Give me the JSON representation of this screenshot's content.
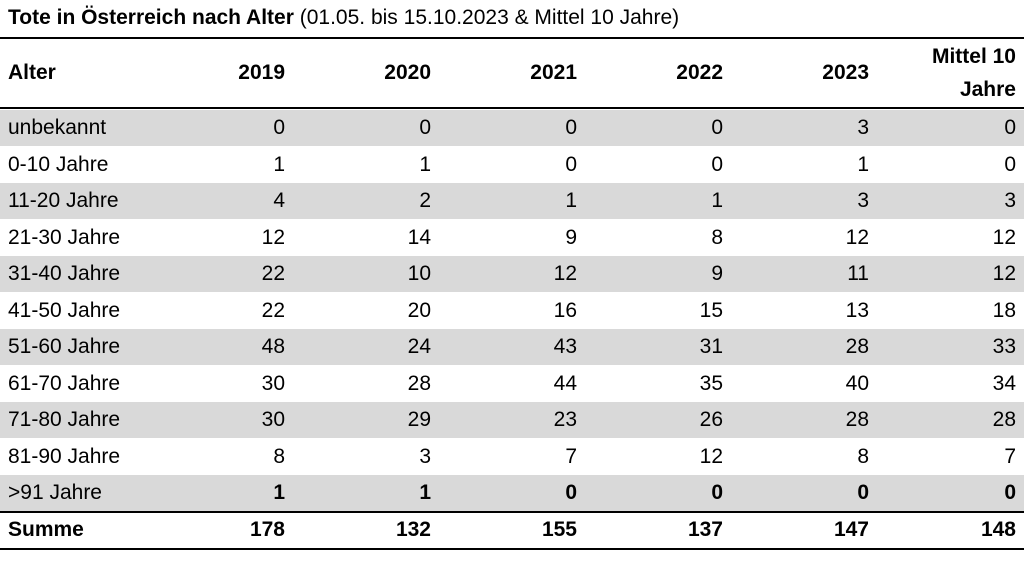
{
  "title": {
    "bold": "Tote in Österreich nach Alter",
    "normal": "(01.05. bis 15.10.2023 & Mittel 10 Jahre)"
  },
  "table": {
    "header": [
      "Alter",
      "2019",
      "2020",
      "2021",
      "2022",
      "2023",
      "Mittel 10 Jahre"
    ],
    "rows": [
      [
        "unbekannt",
        0,
        0,
        0,
        0,
        3,
        0
      ],
      [
        "0-10 Jahre",
        1,
        1,
        0,
        0,
        1,
        0
      ],
      [
        "11-20 Jahre",
        4,
        2,
        1,
        1,
        3,
        3
      ],
      [
        "21-30 Jahre",
        12,
        14,
        9,
        8,
        12,
        12
      ],
      [
        "31-40 Jahre",
        22,
        10,
        12,
        9,
        11,
        12
      ],
      [
        "41-50 Jahre",
        22,
        20,
        16,
        15,
        13,
        18
      ],
      [
        "51-60 Jahre",
        48,
        24,
        43,
        31,
        28,
        33
      ],
      [
        "61-70 Jahre",
        30,
        28,
        44,
        35,
        40,
        34
      ],
      [
        "71-80 Jahre",
        30,
        29,
        23,
        26,
        28,
        28
      ],
      [
        "81-90 Jahre",
        8,
        3,
        7,
        12,
        8,
        7
      ],
      [
        ">91 Jahre",
        1,
        1,
        0,
        0,
        0,
        0
      ]
    ],
    "total": [
      "Summe",
      178,
      132,
      155,
      137,
      147,
      148
    ]
  }
}
